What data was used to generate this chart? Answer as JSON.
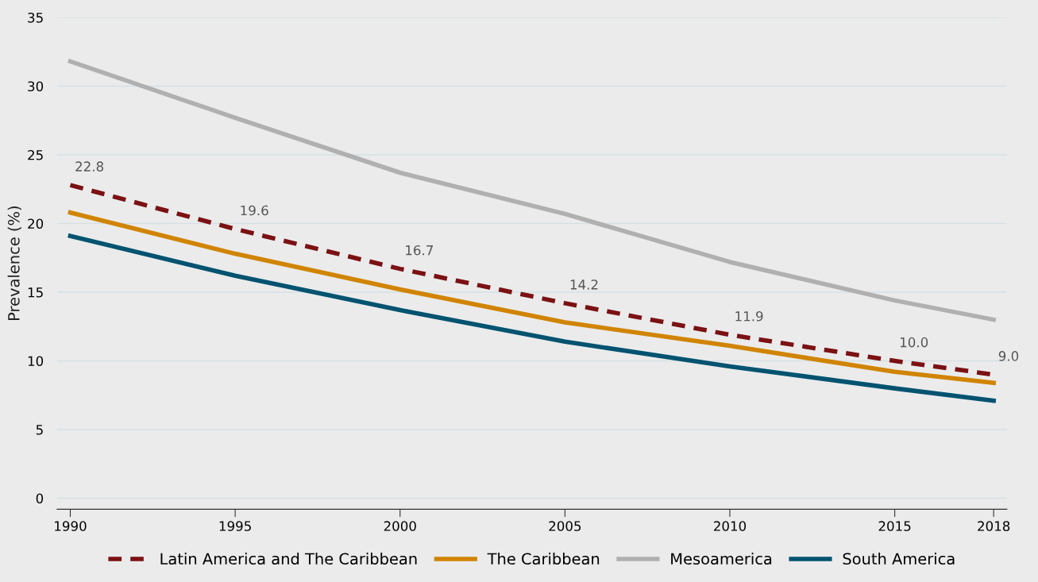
{
  "chart_data": {
    "type": "line",
    "ylabel": "Prevalence (%)",
    "x": [
      1990,
      1995,
      2000,
      2005,
      2010,
      2015,
      2018
    ],
    "series": [
      {
        "name": "Latin America and The Caribbean",
        "color": "#7b1113",
        "line_style": "dashed",
        "values": [
          22.8,
          19.6,
          16.7,
          14.2,
          11.9,
          10.0,
          9.0
        ],
        "value_labels": [
          "22.8",
          "19.6",
          "16.7",
          "14.2",
          "11.9",
          "10.0",
          "9.0"
        ]
      },
      {
        "name": "The Caribbean",
        "color": "#d08400",
        "values": [
          20.8,
          17.8,
          15.2,
          12.8,
          11.1,
          9.2,
          8.4
        ]
      },
      {
        "name": "Mesoamerica",
        "color": "#b0b0b0",
        "values": [
          31.8,
          27.7,
          23.7,
          20.7,
          17.2,
          14.4,
          13.0
        ]
      },
      {
        "name": "South America",
        "color": "#005370",
        "values": [
          19.1,
          16.2,
          13.7,
          11.4,
          9.6,
          8.0,
          7.1
        ]
      }
    ],
    "xlim": [
      1989.6,
      2018.4
    ],
    "xticks": [
      1990,
      1995,
      2000,
      2005,
      2010,
      2015,
      2018
    ],
    "ylim": [
      -0.8,
      35
    ],
    "yticks": [
      0,
      5,
      10,
      15,
      20,
      25,
      30,
      35
    ],
    "grid": "y",
    "legend": "bottom",
    "line_style": "solid",
    "marker": "none"
  }
}
